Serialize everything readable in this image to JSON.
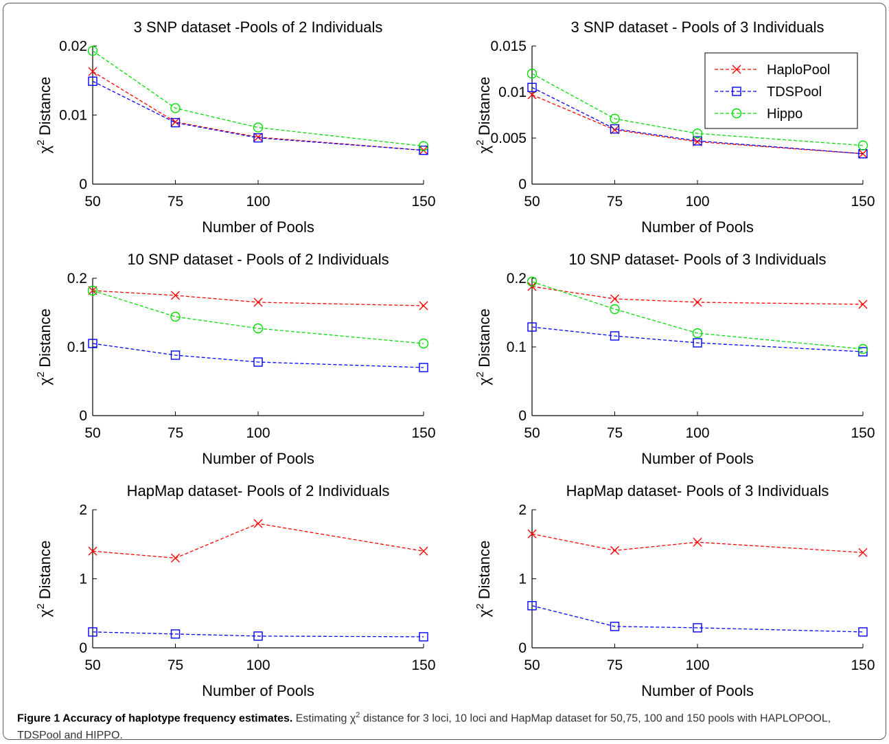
{
  "chart_data": [
    {
      "type": "line",
      "title": "3 SNP dataset -Pools of 2 Individuals",
      "xlabel": "Number of Pools",
      "ylabel_main": "χ",
      "ylabel_sup": "2",
      "ylabel_rest": " Distance",
      "x": [
        50,
        75,
        100,
        150
      ],
      "xticks": [
        "50",
        "75",
        "100",
        "150"
      ],
      "ylim": [
        0,
        0.02
      ],
      "yticks": [
        0,
        0.01,
        0.02
      ],
      "yticklabels": [
        "0",
        "0.01",
        "0.02"
      ],
      "series": [
        {
          "name": "HaploPool",
          "color": "#ff0000",
          "marker": "x",
          "values": [
            0.0163,
            0.009,
            0.0068,
            0.0049
          ]
        },
        {
          "name": "TDSPool",
          "color": "#0000ff",
          "marker": "square",
          "values": [
            0.0149,
            0.0089,
            0.0067,
            0.0049
          ]
        },
        {
          "name": "Hippo",
          "color": "#00dd00",
          "marker": "circle",
          "values": [
            0.0193,
            0.011,
            0.0082,
            0.0055
          ]
        }
      ]
    },
    {
      "type": "line",
      "title": "3 SNP dataset - Pools of 3 Individuals",
      "xlabel": "Number of Pools",
      "ylabel_main": "χ",
      "ylabel_sup": "2",
      "ylabel_rest": " Distance",
      "x": [
        50,
        75,
        100,
        150
      ],
      "xticks": [
        "50",
        "75",
        "100",
        "150"
      ],
      "ylim": [
        0,
        0.015
      ],
      "yticks": [
        0,
        0.005,
        0.01,
        0.015
      ],
      "yticklabels": [
        "0",
        "0.005",
        "0.01",
        "0.015"
      ],
      "legend": true,
      "series": [
        {
          "name": "HaploPool",
          "color": "#ff0000",
          "marker": "x",
          "values": [
            0.0097,
            0.0059,
            0.0046,
            0.0033
          ]
        },
        {
          "name": "TDSPool",
          "color": "#0000ff",
          "marker": "square",
          "values": [
            0.0105,
            0.006,
            0.0047,
            0.0033
          ]
        },
        {
          "name": "Hippo",
          "color": "#00dd00",
          "marker": "circle",
          "values": [
            0.012,
            0.0071,
            0.0055,
            0.0042
          ]
        }
      ]
    },
    {
      "type": "line",
      "title": "10 SNP dataset - Pools of 2 Individuals",
      "xlabel": "Number of Pools",
      "ylabel_main": "χ",
      "ylabel_sup": "2",
      "ylabel_rest": " Distance",
      "x": [
        50,
        75,
        100,
        150
      ],
      "xticks": [
        "50",
        "75",
        "100",
        "150"
      ],
      "ylim": [
        0,
        0.2
      ],
      "yticks": [
        0,
        0.1,
        0.2
      ],
      "yticklabels": [
        "0",
        "0.1",
        "0.2"
      ],
      "series": [
        {
          "name": "HaploPool",
          "color": "#ff0000",
          "marker": "x",
          "values": [
            0.182,
            0.175,
            0.165,
            0.16
          ]
        },
        {
          "name": "TDSPool",
          "color": "#0000ff",
          "marker": "square",
          "values": [
            0.105,
            0.088,
            0.078,
            0.07
          ]
        },
        {
          "name": "Hippo",
          "color": "#00dd00",
          "marker": "circle",
          "values": [
            0.182,
            0.144,
            0.127,
            0.105
          ]
        }
      ]
    },
    {
      "type": "line",
      "title": "10 SNP dataset- Pools of 3 Individuals",
      "xlabel": "Number of Pools",
      "ylabel_main": "χ",
      "ylabel_sup": "2",
      "ylabel_rest": " Distance",
      "x": [
        50,
        75,
        100,
        150
      ],
      "xticks": [
        "50",
        "75",
        "100",
        "150"
      ],
      "ylim": [
        0,
        0.2
      ],
      "yticks": [
        0,
        0.1,
        0.2
      ],
      "yticklabels": [
        "0",
        "0.1",
        "0.2"
      ],
      "series": [
        {
          "name": "HaploPool",
          "color": "#ff0000",
          "marker": "x",
          "values": [
            0.188,
            0.17,
            0.165,
            0.162
          ]
        },
        {
          "name": "TDSPool",
          "color": "#0000ff",
          "marker": "square",
          "values": [
            0.129,
            0.116,
            0.106,
            0.093
          ]
        },
        {
          "name": "Hippo",
          "color": "#00dd00",
          "marker": "circle",
          "values": [
            0.195,
            0.155,
            0.12,
            0.097
          ]
        }
      ]
    },
    {
      "type": "line",
      "title": "HapMap dataset- Pools of 2 Individuals",
      "xlabel": "Number of Pools",
      "ylabel_main": "χ",
      "ylabel_sup": "2",
      "ylabel_rest": " Distance",
      "x": [
        50,
        75,
        100,
        150
      ],
      "xticks": [
        "50",
        "75",
        "100",
        "150"
      ],
      "ylim": [
        0,
        2
      ],
      "yticks": [
        0,
        1,
        2
      ],
      "yticklabels": [
        "0",
        "1",
        "2"
      ],
      "series": [
        {
          "name": "HaploPool",
          "color": "#ff0000",
          "marker": "x",
          "values": [
            1.4,
            1.3,
            1.8,
            1.4
          ]
        },
        {
          "name": "TDSPool",
          "color": "#0000ff",
          "marker": "square",
          "values": [
            0.23,
            0.2,
            0.17,
            0.16
          ]
        }
      ]
    },
    {
      "type": "line",
      "title": "HapMap dataset- Pools of 3 Individuals",
      "xlabel": "Number of Pools",
      "ylabel_main": "χ",
      "ylabel_sup": "2",
      "ylabel_rest": " Distance",
      "x": [
        50,
        75,
        100,
        150
      ],
      "xticks": [
        "50",
        "75",
        "100",
        "150"
      ],
      "ylim": [
        0,
        2
      ],
      "yticks": [
        0,
        1,
        2
      ],
      "yticklabels": [
        "0",
        "1",
        "2"
      ],
      "series": [
        {
          "name": "HaploPool",
          "color": "#ff0000",
          "marker": "x",
          "values": [
            1.65,
            1.41,
            1.53,
            1.38
          ]
        },
        {
          "name": "TDSPool",
          "color": "#0000ff",
          "marker": "square",
          "values": [
            0.61,
            0.31,
            0.29,
            0.23
          ]
        }
      ]
    }
  ],
  "caption": {
    "label": "Figure 1 Accuracy of haplotype frequency estimates.",
    "text_before_chi": " Estimating χ",
    "chi_sup": "2",
    "text_after": " distance for 3 loci, 10 loci and HapMap dataset for 50,75, 100 and 150 pools with HAPLOPOOL, TDSPool and HIPPO."
  }
}
